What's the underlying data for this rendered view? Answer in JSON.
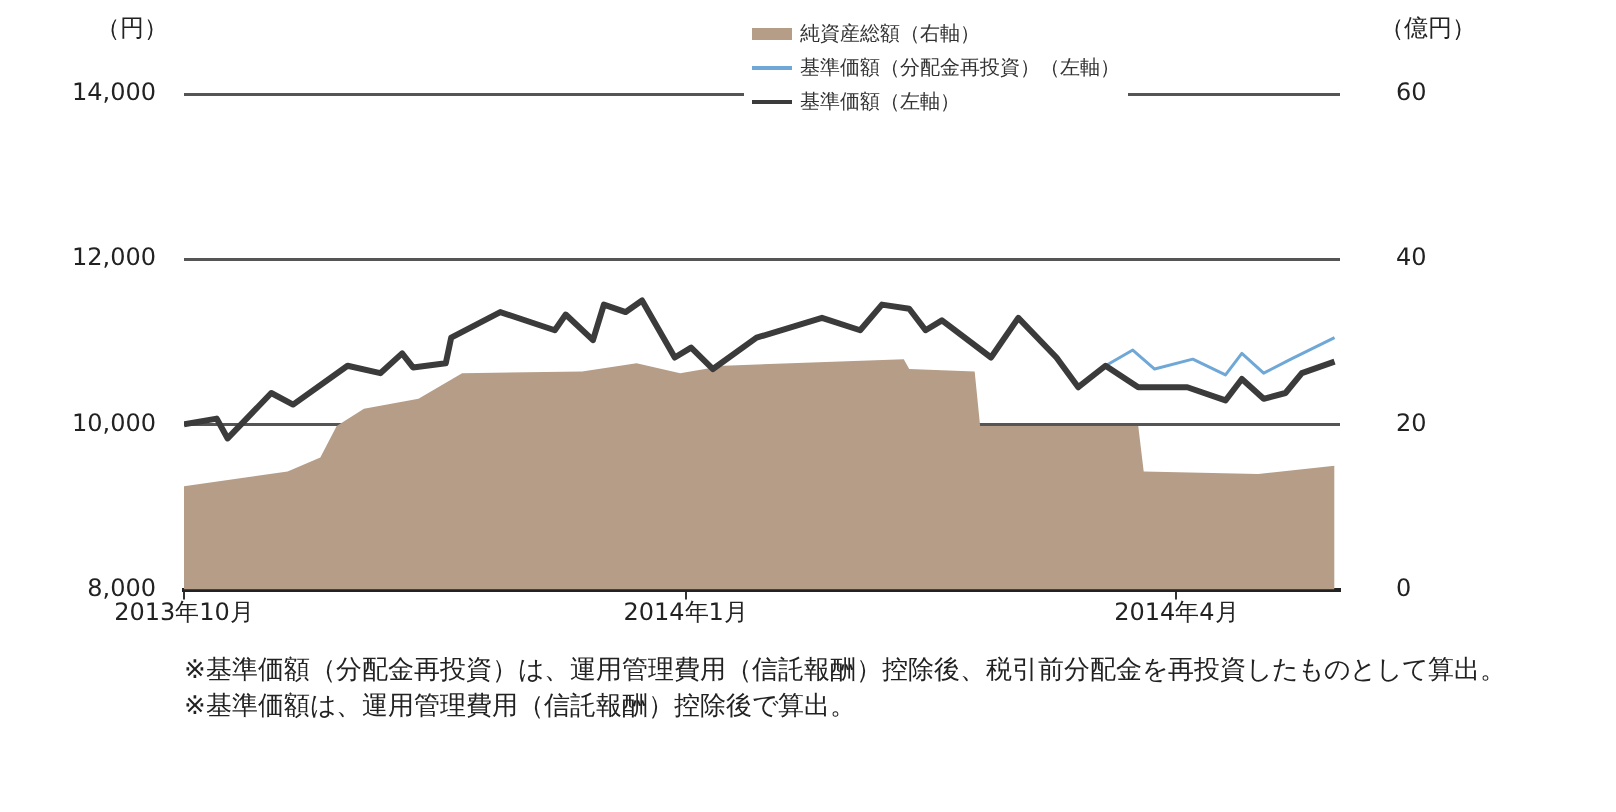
{
  "chart_data": {
    "type": "line",
    "ylabel": "（円）",
    "y2label": "（億円）",
    "xlim": [
      "2013-10-01",
      "2014-05-01"
    ],
    "xticks": [
      {
        "value": "2013-10-01",
        "label": "2013年10月"
      },
      {
        "value": "2014-01-01",
        "label": "2014年1月"
      },
      {
        "value": "2014-04-01",
        "label": "2014年4月"
      }
    ],
    "ylim": [
      8000,
      14000
    ],
    "yticks": [
      {
        "value": 8000,
        "label": "8,000"
      },
      {
        "value": 10000,
        "label": "10,000"
      },
      {
        "value": 12000,
        "label": "12,000"
      },
      {
        "value": 14000,
        "label": "14,000"
      }
    ],
    "y2lim": [
      0,
      60
    ],
    "y2ticks": [
      0,
      20,
      40,
      60
    ],
    "grid": "y",
    "legend": "top right",
    "marker": "none",
    "line_style": "solid",
    "series": [
      {
        "name": "純資産総額（右軸）",
        "type": "area",
        "axis": "y2",
        "color": "#b59d88",
        "x": [
          "2013-10-01",
          "2013-10-20",
          "2013-10-26",
          "2013-10-29",
          "2013-11-03",
          "2013-11-13",
          "2013-11-21",
          "2013-12-13",
          "2013-12-23",
          "2013-12-31",
          "2014-01-08",
          "2014-02-10",
          "2014-02-11",
          "2014-02-23",
          "2014-02-24",
          "2014-03-25",
          "2014-03-26",
          "2014-04-16",
          "2014-04-30"
        ],
        "values": [
          12.5,
          14.3,
          16,
          19.8,
          21.9,
          23.1,
          26.2,
          26.4,
          27.4,
          26.2,
          27.1,
          27.9,
          26.7,
          26.4,
          19.8,
          19.8,
          14.3,
          14,
          15
        ]
      },
      {
        "name": "基準価額（分配金再投資）（左軸）",
        "color": "#6fa8d6",
        "x": [
          "2014-03-19",
          "2014-03-24",
          "2014-03-28",
          "2014-04-04",
          "2014-04-10",
          "2014-04-13",
          "2014-04-17",
          "2014-04-22",
          "2014-04-30"
        ],
        "values": [
          10710,
          10900,
          10670,
          10790,
          10600,
          10860,
          10620,
          10790,
          11050
        ]
      },
      {
        "name": "基準価額（左軸）",
        "color": "#3b3b3b",
        "x": [
          "2013-10-01",
          "2013-10-07",
          "2013-10-09",
          "2013-10-17",
          "2013-10-21",
          "2013-10-31",
          "2013-11-06",
          "2013-11-10",
          "2013-11-12",
          "2013-11-18",
          "2013-11-19",
          "2013-11-28",
          "2013-12-08",
          "2013-12-10",
          "2013-12-15",
          "2013-12-17",
          "2013-12-21",
          "2013-12-24",
          "2013-12-30",
          "2014-01-02",
          "2014-01-06",
          "2014-01-14",
          "2014-01-26",
          "2014-02-02",
          "2014-02-06",
          "2014-02-11",
          "2014-02-14",
          "2014-02-17",
          "2014-02-26",
          "2014-03-03",
          "2014-03-10",
          "2014-03-14",
          "2014-03-19",
          "2014-03-25",
          "2014-04-03",
          "2014-04-10",
          "2014-04-13",
          "2014-04-17",
          "2014-04-21",
          "2014-04-24",
          "2014-04-30"
        ],
        "values": [
          10000,
          10070,
          9830,
          10380,
          10240,
          10710,
          10620,
          10860,
          10690,
          10740,
          11050,
          11360,
          11140,
          11330,
          11020,
          11450,
          11360,
          11500,
          10810,
          10930,
          10670,
          11050,
          11290,
          11140,
          11450,
          11400,
          11140,
          11260,
          10810,
          11290,
          10810,
          10450,
          10710,
          10450,
          10450,
          10290,
          10550,
          10310,
          10380,
          10620,
          10760
        ]
      }
    ],
    "annotations": [
      "※基準価額（分配金再投資）は、運用管理費用（信託報酬）控除後、税引前分配金を再投資したものとして算出。",
      "※基準価額は、運用管理費用（信託報酬）控除後で算出。"
    ]
  }
}
